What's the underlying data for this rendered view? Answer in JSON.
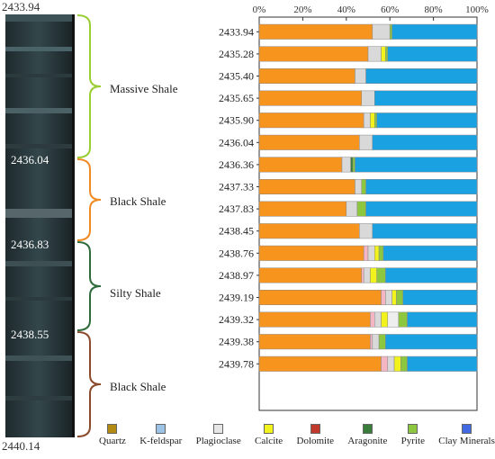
{
  "core": {
    "depth_top": "2433.94",
    "depth_bottom": "2440.14",
    "boundary_depths": [
      "2436.04",
      "2436.83",
      "2438.55"
    ]
  },
  "facies": [
    {
      "label": "Massive Shale",
      "color": "#9ACD32",
      "from": "2433.94",
      "to": "2436.04"
    },
    {
      "label": "Black Shale",
      "color": "#F08A24",
      "from": "2436.04",
      "to": "2436.83"
    },
    {
      "label": "Silty Shale",
      "color": "#2E6B3A",
      "from": "2436.83",
      "to": "2438.55"
    },
    {
      "label": "Black Shale",
      "color": "#8B4A2B",
      "from": "2438.55",
      "to": "2440.14"
    }
  ],
  "legend": [
    {
      "label": "Quartz",
      "color": "#B38B12"
    },
    {
      "label": "K-feldspar",
      "color": "#9CC3E6"
    },
    {
      "label": "Plagioclase",
      "color": "#E6E6E6"
    },
    {
      "label": "Calcite",
      "color": "#F2F21C"
    },
    {
      "label": "Dolomite",
      "color": "#C0392B"
    },
    {
      "label": "Aragonite",
      "color": "#3A7D3A"
    },
    {
      "label": "Pyrite",
      "color": "#8DC63F"
    },
    {
      "label": "Clay Minerals",
      "color": "#4169E1"
    }
  ],
  "chart_data": {
    "type": "bar",
    "orientation": "horizontal",
    "stacked": true,
    "xlim": [
      0,
      100
    ],
    "x_ticks": [
      "0%",
      "20%",
      "40%",
      "60%",
      "80%",
      "100%"
    ],
    "categories": [
      "2433.94",
      "2435.28",
      "2435.40",
      "2435.65",
      "2435.90",
      "2436.04",
      "2436.36",
      "2437.33",
      "2437.83",
      "2438.45",
      "2438.76",
      "2438.97",
      "2439.19",
      "2439.32",
      "2439.38",
      "2439.78"
    ],
    "series": [
      {
        "name": "Quartz",
        "color": "#F7941D",
        "values": [
          52,
          50,
          44,
          47,
          48,
          46,
          38,
          44,
          40,
          46,
          48,
          47,
          56,
          51,
          51,
          56
        ]
      },
      {
        "name": "K-feldspar",
        "color": "#F4B6C2",
        "values": [
          0,
          0,
          0,
          0,
          0,
          0,
          0,
          0,
          0,
          0,
          2,
          1,
          2,
          2,
          1,
          3
        ]
      },
      {
        "name": "Plagioclase",
        "color": "#D9D9D9",
        "values": [
          8,
          6,
          5,
          6,
          3,
          6,
          4,
          3,
          5,
          6,
          3,
          3,
          3,
          3,
          3,
          3
        ]
      },
      {
        "name": "Calcite",
        "color": "#F2F21C",
        "values": [
          0,
          2,
          0,
          0,
          2,
          0,
          0,
          0,
          0,
          0,
          2,
          3,
          2,
          3,
          0,
          3
        ]
      },
      {
        "name": "Dolomite",
        "color": "#EEEEEE",
        "values": [
          0,
          0,
          0,
          0,
          0,
          0,
          0,
          0,
          0,
          0,
          0,
          0,
          0,
          5,
          0,
          0
        ]
      },
      {
        "name": "Aragonite",
        "color": "#3A7D3A",
        "values": [
          0,
          0,
          0,
          0,
          0,
          0,
          1,
          0,
          0,
          0,
          0,
          0,
          0,
          0,
          0,
          0
        ]
      },
      {
        "name": "Pyrite",
        "color": "#8DC63F",
        "values": [
          1,
          1,
          0,
          0,
          1,
          0,
          1,
          2,
          4,
          0,
          2,
          4,
          3,
          4,
          3,
          3
        ]
      },
      {
        "name": "Clay Minerals",
        "color": "#1AA1E2",
        "values": [
          39,
          41,
          51,
          47,
          46,
          48,
          56,
          51,
          51,
          48,
          43,
          42,
          34,
          32,
          42,
          32
        ]
      }
    ]
  }
}
